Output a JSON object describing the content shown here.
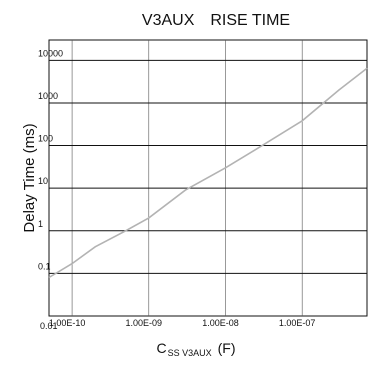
{
  "chart_data": {
    "type": "line",
    "title": "V3AUX　RISE TIME",
    "ylabel": "Delay Time (ms)",
    "xlabel": {
      "main": "C",
      "sub": "SS V3AUX",
      "unit": "(F)"
    },
    "xscale": "log",
    "yscale": "log",
    "xlim": [
      5e-11,
      7e-07
    ],
    "ylim": [
      0.01,
      30000
    ],
    "grid": true,
    "x_tick_labels": [
      {
        "value": 1e-10,
        "label": "1.00E-10"
      },
      {
        "value": 1e-09,
        "label": "1.00E-09"
      },
      {
        "value": 1e-08,
        "label": "1.00E-08"
      },
      {
        "value": 1e-07,
        "label": "1.00E-07"
      }
    ],
    "y_tick_labels": [
      {
        "value": 0.01,
        "label": "0.01"
      },
      {
        "value": 0.1,
        "label": "0.1"
      },
      {
        "value": 1,
        "label": "1"
      },
      {
        "value": 10,
        "label": "10"
      },
      {
        "value": 100,
        "label": "100"
      },
      {
        "value": 1000,
        "label": "1000"
      },
      {
        "value": 10000,
        "label": "10000"
      }
    ],
    "series": [
      {
        "color": "#b3b3b3",
        "points": [
          {
            "x": 5e-11,
            "y": 0.08
          },
          {
            "x": 1e-10,
            "y": 0.17
          },
          {
            "x": 2e-10,
            "y": 0.42
          },
          {
            "x": 5e-10,
            "y": 1.0
          },
          {
            "x": 1e-09,
            "y": 2.0
          },
          {
            "x": 3e-09,
            "y": 9
          },
          {
            "x": 1e-08,
            "y": 30
          },
          {
            "x": 3e-08,
            "y": 100
          },
          {
            "x": 1e-07,
            "y": 380
          },
          {
            "x": 3e-07,
            "y": 2000
          },
          {
            "x": 7e-07,
            "y": 6500
          }
        ]
      }
    ]
  }
}
